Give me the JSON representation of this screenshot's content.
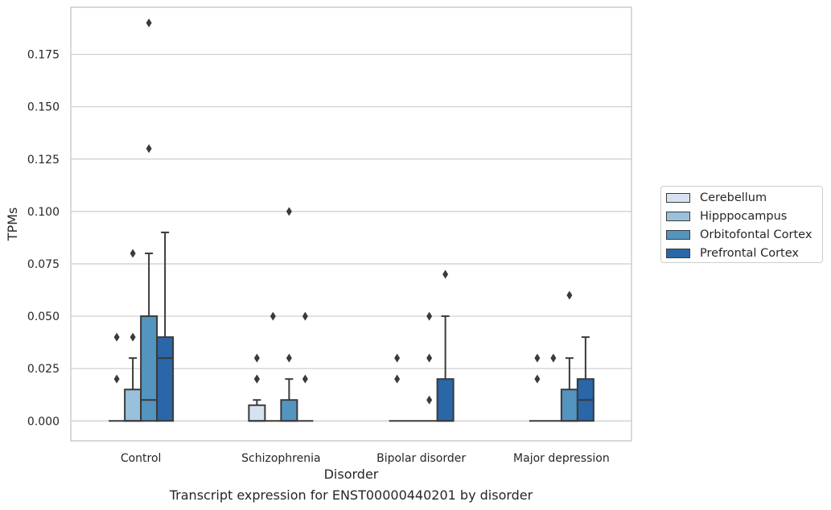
{
  "chart_data": {
    "type": "box",
    "xlabel": "Disorder",
    "ylabel": "TPMs",
    "caption": "Transcript expression for ENST00000440201 by disorder",
    "ylim": [
      -0.0095,
      0.1975
    ],
    "yticks": [
      0.0,
      0.025,
      0.05,
      0.075,
      0.1,
      0.125,
      0.15,
      0.175
    ],
    "ytick_labels": [
      "0.000",
      "0.025",
      "0.050",
      "0.075",
      "0.100",
      "0.125",
      "0.150",
      "0.175"
    ],
    "grid": "horizontal",
    "legend_position": "right",
    "categories": [
      "Control",
      "Schizophrenia",
      "Bipolar disorder",
      "Major depression"
    ],
    "series": [
      {
        "name": "Cerebellum",
        "color": "#d5e3f1",
        "boxes": [
          {
            "q1": 0,
            "median": 0,
            "q3": 0,
            "whislo": 0,
            "whishi": 0,
            "fliers": [
              0.02,
              0.04
            ]
          },
          {
            "q1": 0,
            "median": 0,
            "q3": 0.0075,
            "whislo": 0,
            "whishi": 0.01,
            "fliers": [
              0.02,
              0.02,
              0.03
            ]
          },
          {
            "q1": 0,
            "median": 0,
            "q3": 0,
            "whislo": 0,
            "whishi": 0,
            "fliers": [
              0.02,
              0.03
            ]
          },
          {
            "q1": 0,
            "median": 0,
            "q3": 0,
            "whislo": 0,
            "whishi": 0,
            "fliers": [
              0.02,
              0.03
            ]
          }
        ]
      },
      {
        "name": "Hipppocampus",
        "color": "#99c1db",
        "boxes": [
          {
            "q1": 0,
            "median": 0,
            "q3": 0.015,
            "whislo": 0,
            "whishi": 0.03,
            "fliers": [
              0.04,
              0.08
            ]
          },
          {
            "q1": 0,
            "median": 0,
            "q3": 0,
            "whislo": 0,
            "whishi": 0,
            "fliers": [
              0.05
            ]
          },
          {
            "q1": 0,
            "median": 0,
            "q3": 0,
            "whislo": 0,
            "whishi": 0,
            "fliers": []
          },
          {
            "q1": 0,
            "median": 0,
            "q3": 0,
            "whislo": 0,
            "whishi": 0,
            "fliers": [
              0.03
            ]
          }
        ]
      },
      {
        "name": "Orbitofontal Cortex",
        "color": "#5495c0",
        "boxes": [
          {
            "q1": 0,
            "median": 0.01,
            "q3": 0.05,
            "whislo": 0,
            "whishi": 0.08,
            "fliers": [
              0.13,
              0.19
            ]
          },
          {
            "q1": 0,
            "median": 0,
            "q3": 0.01,
            "whislo": 0,
            "whishi": 0.02,
            "fliers": [
              0.03,
              0.1
            ]
          },
          {
            "q1": 0,
            "median": 0,
            "q3": 0,
            "whislo": 0,
            "whishi": 0,
            "fliers": [
              0.01,
              0.03,
              0.05
            ]
          },
          {
            "q1": 0,
            "median": 0,
            "q3": 0.015,
            "whislo": 0,
            "whishi": 0.03,
            "fliers": [
              0.06
            ]
          }
        ]
      },
      {
        "name": "Prefrontal Cortex",
        "color": "#2a66a8",
        "boxes": [
          {
            "q1": 0,
            "median": 0.03,
            "q3": 0.04,
            "whislo": 0,
            "whishi": 0.09,
            "fliers": []
          },
          {
            "q1": 0,
            "median": 0,
            "q3": 0,
            "whislo": 0,
            "whishi": 0,
            "fliers": [
              0.02,
              0.05
            ]
          },
          {
            "q1": 0,
            "median": 0,
            "q3": 0.02,
            "whislo": 0,
            "whishi": 0.05,
            "fliers": [
              0.07
            ]
          },
          {
            "q1": 0,
            "median": 0.01,
            "q3": 0.02,
            "whislo": 0,
            "whishi": 0.04,
            "fliers": []
          }
        ]
      }
    ]
  }
}
